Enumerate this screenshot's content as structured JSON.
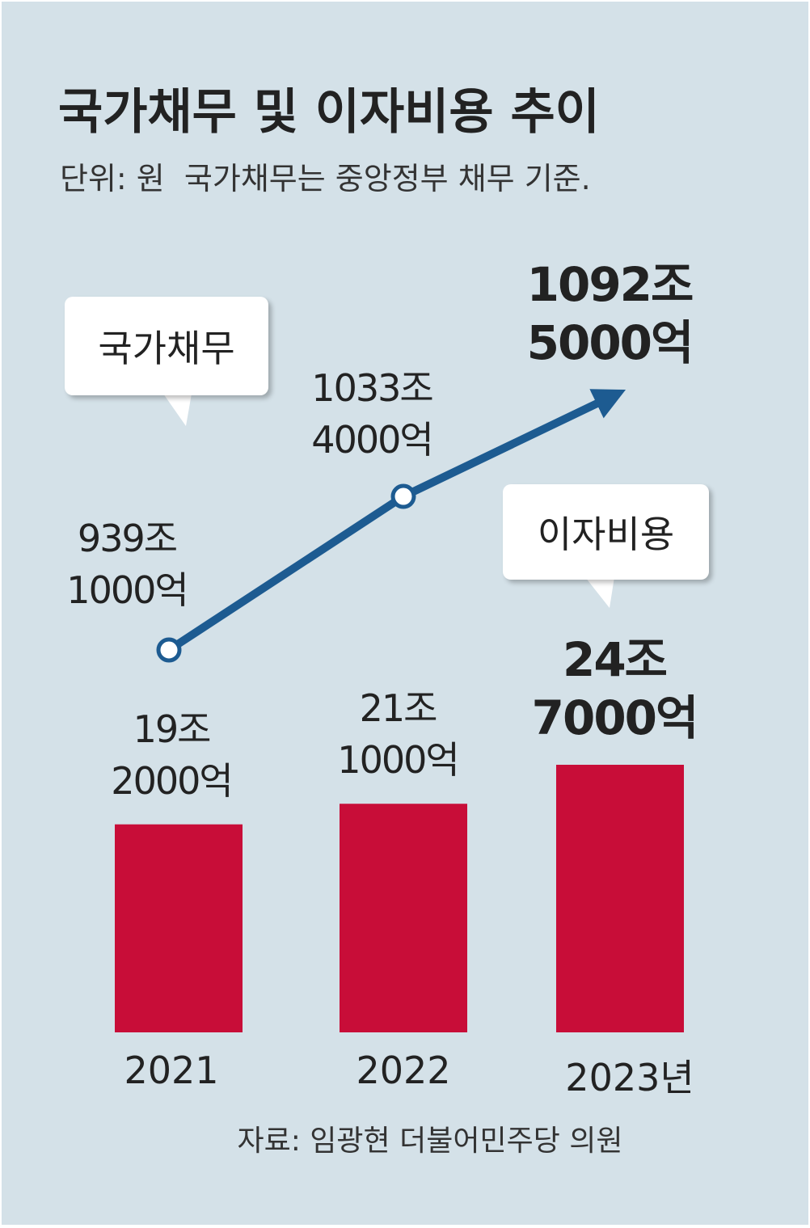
{
  "title": "국가채무 및 이자비용 추이",
  "subtitle": "단위: 원  국가채무는 중앙정부 채무 기준.",
  "source": "자료: 임광현 더불어민주당 의원",
  "chart_data": [
    {
      "type": "line",
      "series": [
        {
          "name": "국가채무",
          "color": "#1d5b91",
          "values": [
            939.1,
            1033.4,
            1092.5
          ],
          "value_labels": [
            "939조\n1000억",
            "1033조\n4000억",
            "1092조\n5000억"
          ]
        }
      ]
    },
    {
      "type": "bar",
      "categories": [
        "2021",
        "2022",
        "2023년"
      ],
      "series": [
        {
          "name": "이자비용",
          "color": "#c80d38",
          "values": [
            19.2,
            21.1,
            24.7
          ],
          "value_labels": [
            "19조\n2000억",
            "21조\n1000억",
            "24조\n7000억"
          ]
        }
      ]
    }
  ]
}
